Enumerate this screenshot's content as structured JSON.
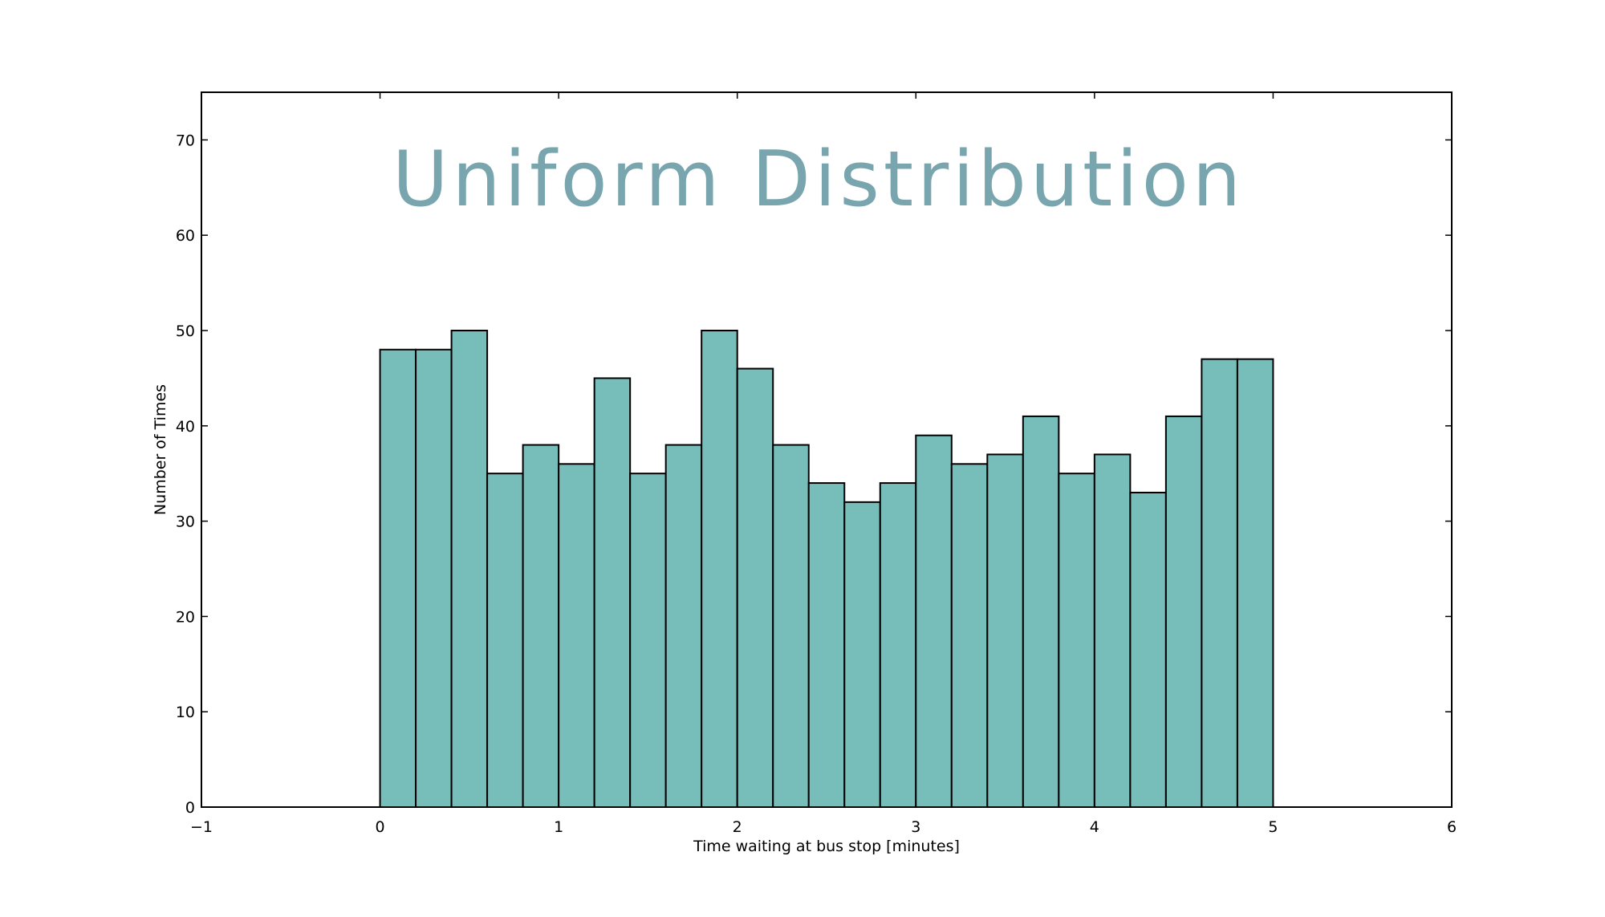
{
  "chart_data": {
    "type": "bar",
    "title": "Uniform Distribution",
    "xlabel": "Time waiting at bus stop [minutes]",
    "ylabel": "Number of Times",
    "xlim": [
      -1,
      6
    ],
    "ylim": [
      0,
      75
    ],
    "xticks": [
      -1,
      0,
      1,
      2,
      3,
      4,
      5,
      6
    ],
    "xtick_labels": [
      "−1",
      "0",
      "1",
      "2",
      "3",
      "4",
      "5",
      "6"
    ],
    "yticks": [
      0,
      10,
      20,
      30,
      40,
      50,
      60,
      70
    ],
    "ytick_labels": [
      "0",
      "10",
      "20",
      "30",
      "40",
      "50",
      "60",
      "70"
    ],
    "bin_width": 0.2,
    "bin_starts": [
      0.0,
      0.2,
      0.4,
      0.6,
      0.8,
      1.0,
      1.2,
      1.4,
      1.6,
      1.8,
      2.0,
      2.2,
      2.4,
      2.6,
      2.8,
      3.0,
      3.2,
      3.4,
      3.6,
      3.8,
      4.0,
      4.2,
      4.4,
      4.6,
      4.8
    ],
    "values": [
      48,
      48,
      50,
      35,
      38,
      36,
      45,
      35,
      38,
      50,
      46,
      38,
      34,
      32,
      34,
      39,
      36,
      37,
      41,
      35,
      37,
      33,
      41,
      47,
      47
    ],
    "grid": false,
    "colors": {
      "bar": "#77bebb",
      "title": "#78a5ae"
    }
  }
}
